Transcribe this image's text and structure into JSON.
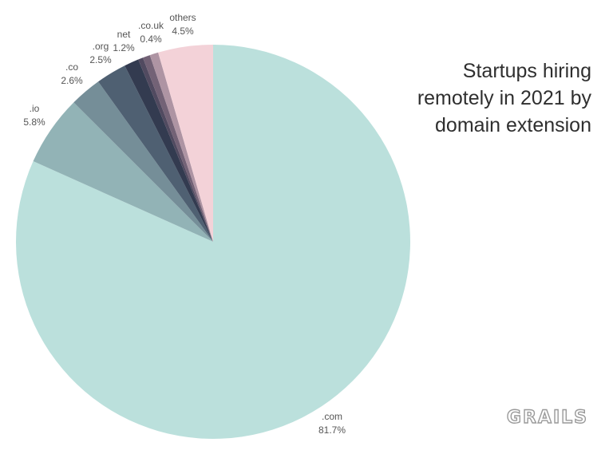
{
  "chart_data": {
    "type": "pie",
    "title": [
      "Startups hiring",
      "remotely in 2021 by",
      "domain extension"
    ],
    "start": "12 o'clock",
    "direction": "clockwise",
    "slices": [
      {
        "name": ".com",
        "value": 81.7,
        "label": "81.7%",
        "color": "#bbe0dc"
      },
      {
        "name": ".io",
        "value": 5.8,
        "label": "5.8%",
        "color": "#92b3b6"
      },
      {
        "name": ".co",
        "value": 2.6,
        "label": "2.6%",
        "color": "#758e98"
      },
      {
        "name": ".org",
        "value": 2.5,
        "label": "2.5%",
        "color": "#4f6072"
      },
      {
        "name": "net",
        "value": 1.2,
        "label": "1.2%",
        "color": "#333b50"
      },
      {
        "name": ".co.uk",
        "value": 0.4,
        "label": "0.4%",
        "color": "#514a60"
      },
      {
        "name": "",
        "value": 0.6,
        "label": "",
        "color": "#736276"
      },
      {
        "name": "",
        "value": 0.7,
        "label": "",
        "color": "#ae94a3"
      },
      {
        "name": "others",
        "value": 4.5,
        "label": "4.5%",
        "color": "#f3d2d8"
      }
    ]
  },
  "brand": {
    "logo_text": "GRAILS",
    "color": "#9a9a9a"
  }
}
